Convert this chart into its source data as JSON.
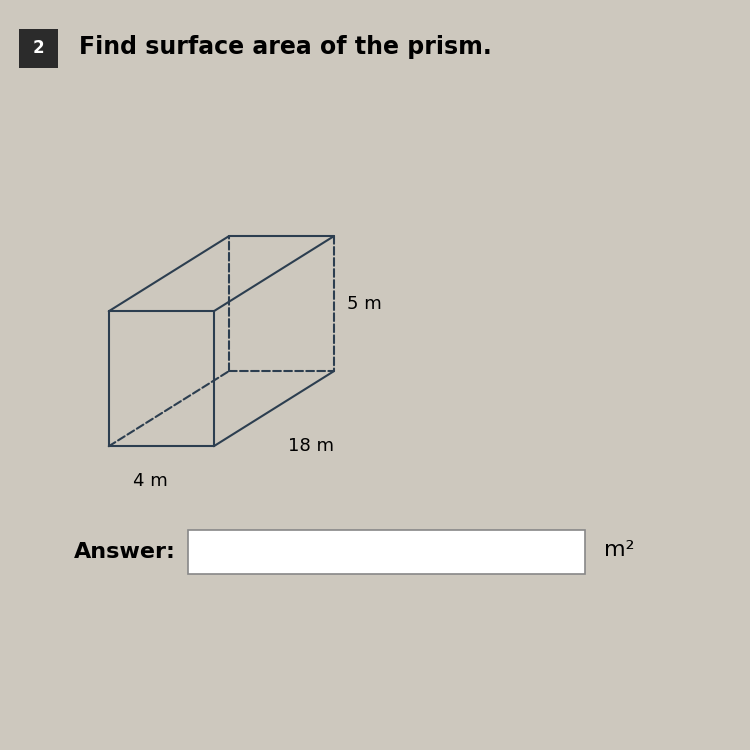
{
  "title": "Find surface area of the prism.",
  "question_number": "2",
  "dim_width": "4 m",
  "dim_length": "18 m",
  "dim_height": "5 m",
  "answer_label": "Answer:",
  "unit_label": "m²",
  "bg_color": "#cdc8be",
  "number_box_color": "#2b2b2b",
  "number_box_text_color": "#ffffff",
  "title_fontsize": 17,
  "label_fontsize": 13,
  "answer_fontsize": 16,
  "line_color": "#2c3e50",
  "line_width": 1.5
}
